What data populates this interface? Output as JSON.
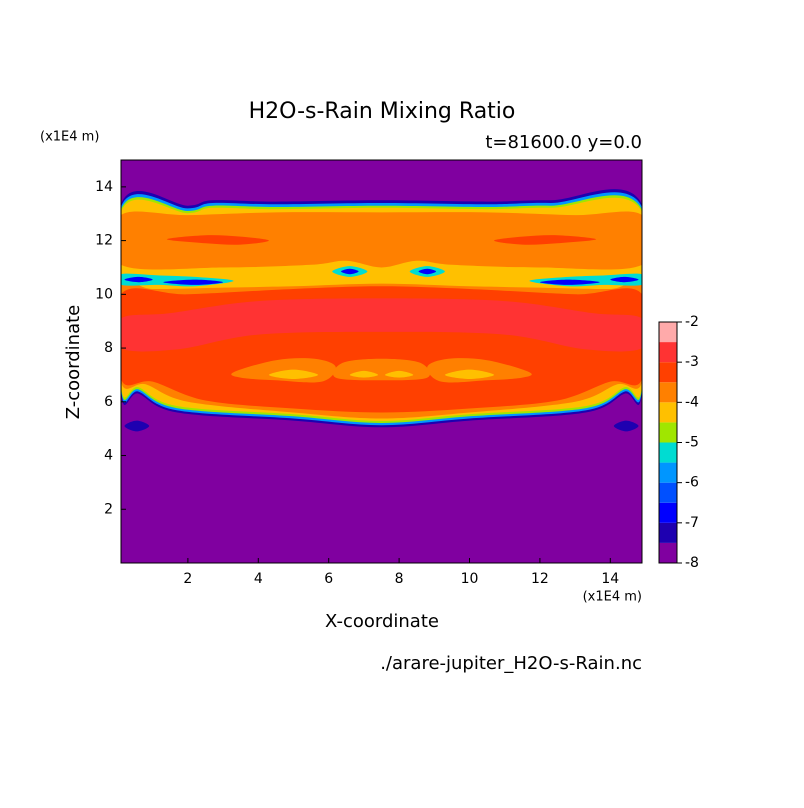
{
  "chart_data": {
    "type": "contour",
    "title": "H2O-s-Rain Mixing Ratio",
    "subtitle": "t=81600.0 y=0.0",
    "x_label": "X-coordinate",
    "y_label": "Z-coordinate",
    "x_unit": "(x1E4 m)",
    "y_unit": "(x1E4 m)",
    "source": "./arare-jupiter_H2O-s-Rain.nc",
    "xlim": [
      0.1,
      14.9
    ],
    "ylim": [
      0,
      15
    ],
    "xticks": [
      2,
      4,
      6,
      8,
      10,
      12,
      14
    ],
    "yticks": [
      2,
      4,
      6,
      8,
      10,
      12,
      14
    ],
    "levels": [
      -8,
      -7.5,
      -7,
      -6.5,
      -6,
      -5.5,
      -5,
      -4.5,
      -4,
      -3.5,
      -3,
      -2.5,
      -2
    ],
    "colors": [
      "#8000a0",
      "#1e00b0",
      "#0000ff",
      "#0050ff",
      "#0096ff",
      "#00dcd2",
      "#a0e600",
      "#ffc000",
      "#ff8000",
      "#ff4000",
      "#ff3333",
      "#ffaaaa"
    ],
    "colorbar_ticks": [
      -8,
      -7,
      -6,
      -5,
      -4,
      -3,
      -2
    ],
    "regions": [
      {
        "value": -7.5,
        "x": [
          0.1,
          2,
          2.7,
          4.5,
          7.5,
          10.5,
          12.3,
          14.9,
          14.9,
          14.4,
          13.3,
          10,
          7.5,
          5,
          1.7,
          0.6,
          0.1
        ],
        "z": [
          13.35,
          13.3,
          13.5,
          13.45,
          13.5,
          13.45,
          13.5,
          13.35,
          6.4,
          6.3,
          5.6,
          5.3,
          5.05,
          5.3,
          5.6,
          6.3,
          6.4
        ]
      },
      {
        "value": -6,
        "x": [
          0.1,
          2,
          2.7,
          4.5,
          7.5,
          10.5,
          12.3,
          14.9,
          14.9,
          14.4,
          13.3,
          10,
          7.5,
          5,
          1.7,
          0.6,
          0.1
        ],
        "z": [
          13.25,
          13.2,
          13.4,
          13.35,
          13.4,
          13.35,
          13.4,
          13.25,
          6.48,
          6.38,
          5.68,
          5.38,
          5.13,
          5.38,
          5.68,
          6.38,
          6.48
        ]
      },
      {
        "value": -5,
        "x": [
          0.1,
          2,
          2.7,
          4.5,
          7.5,
          10.5,
          12.3,
          14.9,
          14.9,
          14.4,
          13.3,
          10,
          7.5,
          5,
          1.7,
          0.6,
          0.1
        ],
        "z": [
          13.15,
          13.1,
          13.3,
          13.25,
          13.3,
          13.25,
          13.3,
          13.15,
          6.56,
          6.46,
          5.76,
          5.46,
          5.21,
          5.46,
          5.76,
          6.46,
          6.56
        ]
      },
      {
        "value": -4.5,
        "x": [
          0.1,
          2,
          2.7,
          4.5,
          7.5,
          10.5,
          12.3,
          14.9,
          14.9,
          14.4,
          13.3,
          10,
          7.5,
          5,
          1.7,
          0.6,
          0.1
        ],
        "z": [
          13.07,
          13.02,
          13.22,
          13.17,
          13.22,
          13.17,
          13.22,
          13.07,
          6.64,
          6.54,
          5.84,
          5.54,
          5.29,
          5.54,
          5.84,
          6.54,
          6.64
        ]
      },
      {
        "value": -4,
        "x": [
          0.1,
          2,
          4.5,
          7.5,
          10.5,
          13,
          14.9,
          14.9,
          12,
          9.5,
          8.5,
          7.5,
          6.5,
          5.5,
          3,
          0.1
        ],
        "z": [
          12.95,
          12.95,
          13.05,
          13.05,
          13.05,
          12.95,
          12.95,
          11.1,
          11.0,
          11.1,
          11.25,
          11.0,
          11.25,
          11.1,
          11.0,
          11.1
        ]
      },
      {
        "value": -4,
        "x": [
          0.1,
          1,
          3,
          5,
          7.5,
          10,
          12,
          14,
          14.9,
          14.9,
          14.2,
          13,
          10,
          7.5,
          5,
          2,
          0.8,
          0.1
        ],
        "z": [
          10.3,
          10.2,
          10.25,
          10.3,
          10.4,
          10.3,
          10.25,
          10.2,
          10.3,
          6.75,
          6.65,
          6.0,
          5.6,
          5.38,
          5.6,
          6.0,
          6.65,
          6.75
        ]
      },
      {
        "value": -3.5,
        "x": [
          0.1,
          2,
          5,
          7.5,
          10,
          13,
          14.9,
          14.9,
          14,
          12.5,
          10,
          7.5,
          5,
          2.5,
          1,
          0.1
        ],
        "z": [
          10.0,
          10.0,
          10.2,
          10.3,
          10.2,
          10.0,
          10.0,
          6.85,
          6.75,
          6.05,
          5.75,
          5.6,
          5.75,
          6.05,
          6.75,
          6.85
        ]
      },
      {
        "value": -3,
        "x": [
          0.1,
          1.5,
          4,
          7.5,
          11,
          13.5,
          14.9,
          14.9,
          13.3,
          11,
          7.5,
          4,
          1.7,
          0.1
        ],
        "z": [
          9.1,
          9.3,
          9.75,
          9.85,
          9.75,
          9.3,
          9.1,
          8.0,
          7.95,
          8.5,
          8.6,
          8.5,
          7.95,
          8.0
        ]
      },
      {
        "value": -4,
        "x": [
          3.3,
          4.5,
          5.6,
          6.2,
          5.8,
          4.5,
          3.5
        ],
        "z": [
          7.1,
          7.55,
          7.6,
          7.3,
          6.75,
          6.8,
          6.9
        ]
      },
      {
        "value": -4,
        "x": [
          11.7,
          10.5,
          9.4,
          8.8,
          9.2,
          10.5,
          11.5
        ],
        "z": [
          7.1,
          7.55,
          7.6,
          7.3,
          6.75,
          6.8,
          6.9
        ]
      },
      {
        "value": -4,
        "x": [
          6.4,
          7.5,
          8.6,
          8.8,
          7.5,
          6.2
        ],
        "z": [
          7.45,
          7.6,
          7.45,
          6.9,
          6.8,
          6.9
        ]
      },
      {
        "value": -4.5,
        "x": [
          4.3,
          5.0,
          5.7,
          5.0
        ],
        "z": [
          7.0,
          7.2,
          7.0,
          6.85
        ]
      },
      {
        "value": -4.5,
        "x": [
          10.7,
          10.0,
          9.3,
          10.0
        ],
        "z": [
          7.0,
          7.2,
          7.0,
          6.85
        ]
      },
      {
        "value": -4.5,
        "x": [
          6.6,
          7.0,
          7.4,
          7.0
        ],
        "z": [
          7.0,
          7.15,
          7.0,
          6.9
        ]
      },
      {
        "value": -4.5,
        "x": [
          8.4,
          8.0,
          7.6,
          8.0
        ],
        "z": [
          7.0,
          7.15,
          7.0,
          6.9
        ]
      },
      {
        "value": -3.5,
        "x": [
          1.4,
          2.5,
          3.5,
          4.3,
          3.5,
          2.5
        ],
        "z": [
          12.05,
          12.2,
          12.15,
          12.0,
          11.85,
          11.9
        ]
      },
      {
        "value": -3.5,
        "x": [
          13.6,
          12.5,
          11.5,
          10.7,
          11.5,
          12.5
        ],
        "z": [
          12.05,
          12.2,
          12.15,
          12.0,
          11.85,
          11.9
        ]
      },
      {
        "value": -5.5,
        "x": [
          0.1,
          1.2,
          2.2,
          3.3,
          2.2,
          1.2,
          0.1
        ],
        "z": [
          10.75,
          10.7,
          10.65,
          10.5,
          10.3,
          10.35,
          10.35
        ]
      },
      {
        "value": -5.5,
        "x": [
          14.9,
          13.8,
          12.8,
          11.7,
          12.8,
          13.8,
          14.9
        ],
        "z": [
          10.75,
          10.7,
          10.65,
          10.5,
          10.3,
          10.35,
          10.35
        ]
      },
      {
        "value": -7,
        "x": [
          0.2,
          0.6,
          1.0,
          0.6
        ],
        "z": [
          10.55,
          10.65,
          10.55,
          10.45
        ]
      },
      {
        "value": -7,
        "x": [
          1.3,
          2.2,
          3.0,
          2.2
        ],
        "z": [
          10.45,
          10.55,
          10.45,
          10.35
        ]
      },
      {
        "value": -7,
        "x": [
          14.8,
          14.4,
          14.0,
          14.4
        ],
        "z": [
          10.55,
          10.65,
          10.55,
          10.45
        ]
      },
      {
        "value": -7,
        "x": [
          13.7,
          12.8,
          12.0,
          12.8
        ],
        "z": [
          10.45,
          10.55,
          10.45,
          10.35
        ]
      },
      {
        "value": -5.5,
        "x": [
          6.1,
          6.6,
          7.1,
          6.6
        ],
        "z": [
          10.85,
          11.05,
          10.85,
          10.65
        ]
      },
      {
        "value": -7,
        "x": [
          6.35,
          6.6,
          6.85,
          6.6
        ],
        "z": [
          10.85,
          10.95,
          10.85,
          10.75
        ]
      },
      {
        "value": -5.5,
        "x": [
          8.3,
          8.8,
          9.3,
          8.8
        ],
        "z": [
          10.85,
          11.05,
          10.85,
          10.65
        ]
      },
      {
        "value": -7,
        "x": [
          8.55,
          8.8,
          9.05,
          8.8
        ],
        "z": [
          10.85,
          10.95,
          10.85,
          10.75
        ]
      },
      {
        "value": -7.5,
        "x": [
          0.2,
          0.55,
          0.9,
          0.55
        ],
        "z": [
          5.1,
          5.3,
          5.1,
          4.9
        ]
      },
      {
        "value": -7.5,
        "x": [
          14.1,
          14.45,
          14.8,
          14.45
        ],
        "z": [
          5.1,
          5.3,
          5.1,
          4.9
        ]
      }
    ]
  }
}
